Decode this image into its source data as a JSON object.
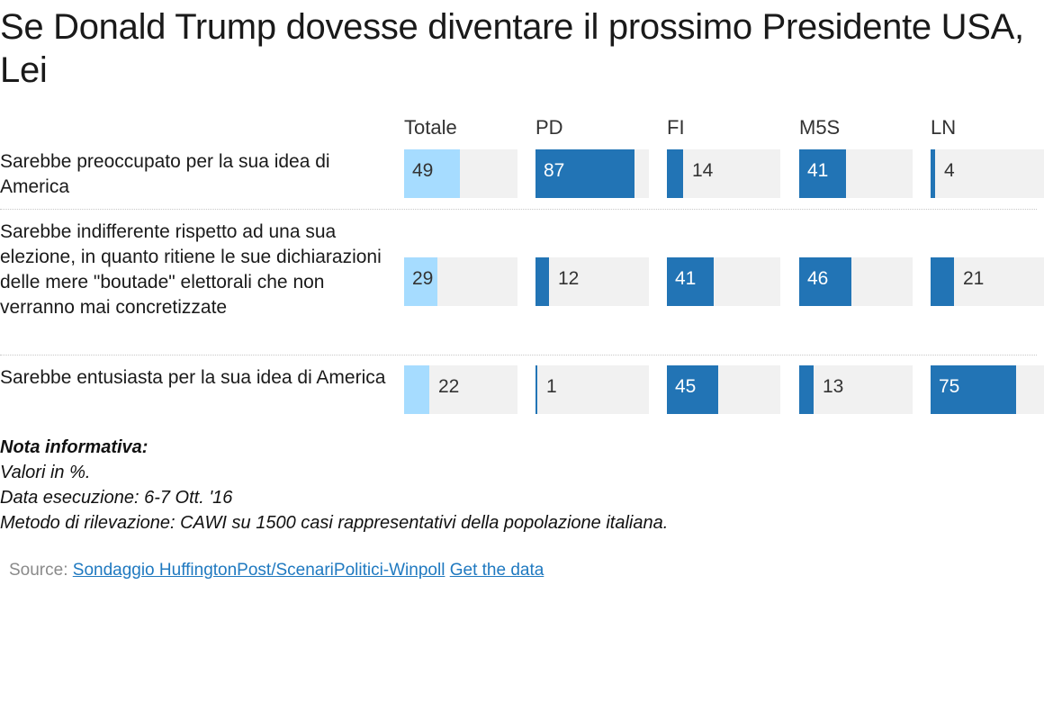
{
  "title": "Se Donald Trump dovesse diventare il prossimo Presidente USA, Lei",
  "colors": {
    "totale_fill": "#a6dcff",
    "party_fill": "#2274b5",
    "cell_bg": "#f1f1f1",
    "link": "#1f79c0"
  },
  "chart_data": {
    "type": "bar",
    "columns": [
      "Totale",
      "PD",
      "FI",
      "M5S",
      "LN"
    ],
    "categories": [
      "Sarebbe preoccupato per la sua idea di America",
      "Sarebbe indifferente rispetto ad una sua elezione, in quanto ritiene le sue dichiarazioni delle mere \"boutade\" elettorali che non verranno mai concretizzate",
      "Sarebbe entusiasta per la sua idea di America"
    ],
    "series": [
      {
        "name": "Totale",
        "values": [
          49,
          29,
          22
        ]
      },
      {
        "name": "PD",
        "values": [
          87,
          12,
          1
        ]
      },
      {
        "name": "FI",
        "values": [
          14,
          41,
          45
        ]
      },
      {
        "name": "M5S",
        "values": [
          41,
          46,
          13
        ]
      },
      {
        "name": "LN",
        "values": [
          4,
          21,
          75
        ]
      }
    ],
    "ylim": [
      0,
      100
    ]
  },
  "notes": {
    "heading": "Nota informativa:",
    "lines": [
      "Valori in %.",
      "Data esecuzione: 6-7 Ott. '16",
      "Metodo di rilevazione: CAWI su 1500 casi rappresentativi della popolazione italiana."
    ]
  },
  "source": {
    "label": "Source:",
    "link_text": "Sondaggio HuffingtonPost/ScenariPolitici-Winpoll",
    "data_link_text": "Get the data"
  }
}
